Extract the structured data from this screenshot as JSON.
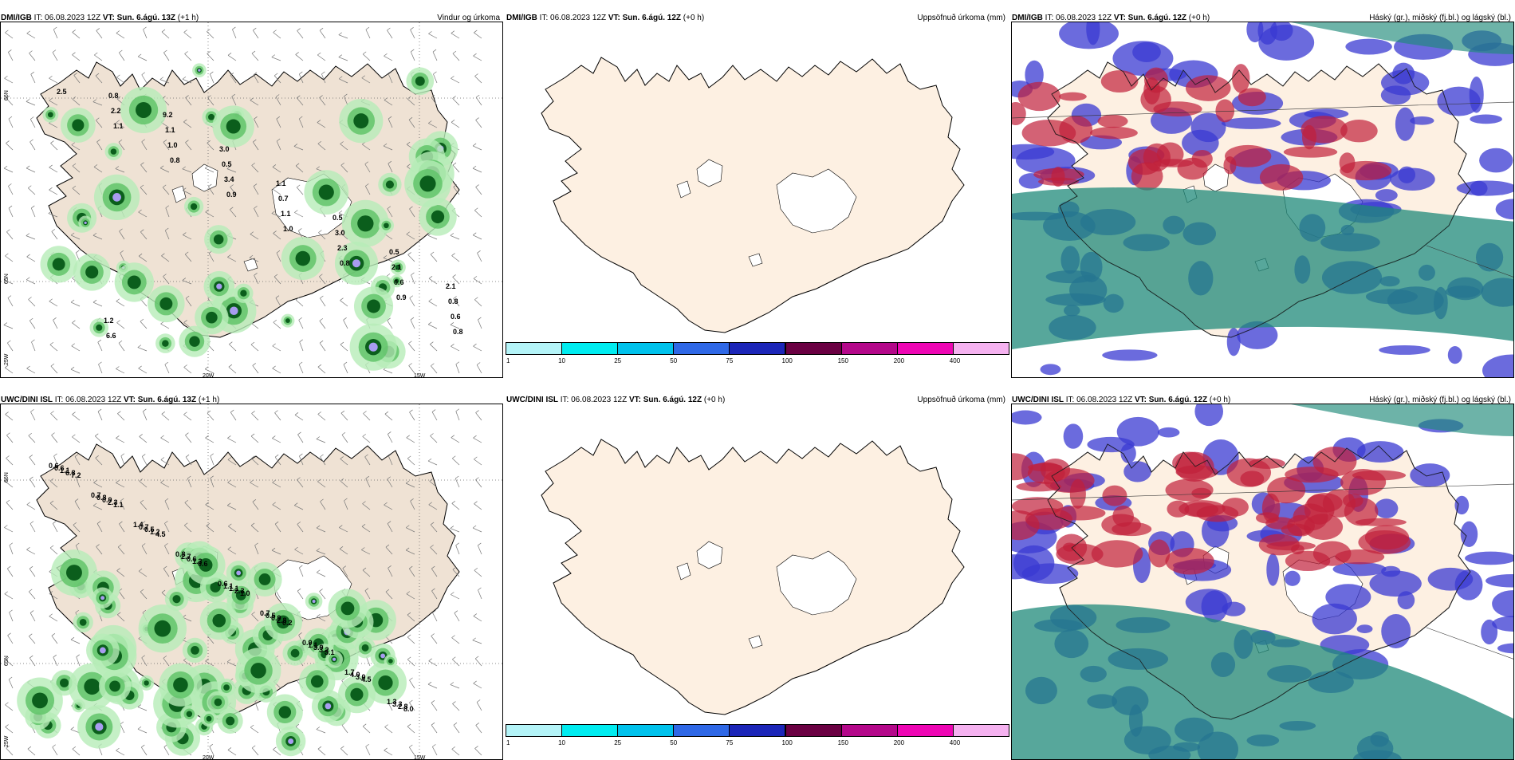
{
  "panels": [
    {
      "model": "DMI/IGB",
      "it": "IT: 06.08.2023 12Z",
      "vt_label": "VT:",
      "vt": "Sun. 6.ágú. 13Z",
      "lead": "(+1 h)",
      "title": "Vindur og úrkoma",
      "kind": "precip",
      "grid_labels": {
        "lat1": "66N",
        "lat2": "65N",
        "lon1": "20W",
        "lon2": "15W",
        "lat3": "25W"
      },
      "values": [
        "2.5",
        "1.1",
        "0.8",
        "0.9",
        "1.0",
        "0.8",
        "0.9",
        "0.8",
        "2.2",
        "1.0",
        "3.4",
        "1.1",
        "2.3",
        "0.6",
        "0.6",
        "0.8",
        "1.1",
        "0.5",
        "0.7",
        "3.0",
        "2.1",
        "0.8",
        "6.6",
        "9.2",
        "3.0",
        "1.1",
        "0.5",
        "0.5",
        "2.1",
        "1.2"
      ]
    },
    {
      "model": "DMI/IGB",
      "it": "IT: 06.08.2023 12Z",
      "vt_label": "VT:",
      "vt": "Sun. 6.ágú. 12Z",
      "lead": "(+0 h)",
      "title": "Uppsöfnuð úrkoma (mm)",
      "kind": "accum"
    },
    {
      "model": "DMI/IGB",
      "it": "IT: 06.08.2023 12Z",
      "vt_label": "VT:",
      "vt": "Sun. 6.ágú. 12Z",
      "lead": "(+0 h)",
      "title": "Háský (gr.), miðský (fj.bl.) og lágský (bl.)",
      "kind": "cloud"
    },
    {
      "model": "UWC/DINI ISL",
      "it": "IT: 06.08.2023 12Z",
      "vt_label": "VT:",
      "vt": "Sun. 6.ágú. 13Z",
      "lead": "(+1 h)",
      "title": "",
      "kind": "precip",
      "grid_labels": {
        "lat1": "66N",
        "lat2": "65N",
        "lon1": "20W",
        "lon2": "15W",
        "lat3": "25W"
      },
      "values": [
        "0.6",
        "0.7",
        "1.4",
        "0.8",
        "0.6",
        "0.7",
        "0.9",
        "1.7",
        "1.3",
        "0.6",
        "0.8",
        "0.7",
        "2.7",
        "1.1",
        "0.5",
        "1.1",
        "4.0",
        "3.3",
        "1.1",
        "0.9",
        "0.5",
        "0.6",
        "1.1",
        "0.9",
        "3.9",
        "3.0",
        "2.8",
        "6.8",
        "2.3",
        "1.2",
        "1.3",
        "2.3",
        "2.8",
        "3.2",
        "4.5",
        "8.0",
        "7.2",
        "1.1",
        "4.5",
        "0.6",
        "1.0",
        "0.2",
        "3.1"
      ]
    },
    {
      "model": "UWC/DINI ISL",
      "it": "IT: 06.08.2023 12Z",
      "vt_label": "VT:",
      "vt": "Sun. 6.ágú. 12Z",
      "lead": "(+0 h)",
      "title": "Uppsöfnuð úrkoma (mm)",
      "kind": "accum"
    },
    {
      "model": "UWC/DINI ISL",
      "it": "IT: 06.08.2023 12Z",
      "vt_label": "VT:",
      "vt": "Sun. 6.ágú. 12Z",
      "lead": "(+0 h)",
      "title": "Háský (gr.), miðský (fj.bl.) og lágský (bl.)",
      "kind": "cloud"
    }
  ],
  "colorbar": {
    "ticks": [
      "1",
      "10",
      "25",
      "50",
      "75",
      "100",
      "150",
      "200",
      "400"
    ],
    "colors": [
      "#b4f4f8",
      "#00ecf0",
      "#00c2ec",
      "#2f68e6",
      "#1c26b8",
      "#6a0042",
      "#b4088a",
      "#ee06b4",
      "#f5b2f0"
    ]
  },
  "palette": {
    "land": "#efe2d4",
    "land_blank": "#fdf0e2",
    "precip_light": "#b6ecb8",
    "precip_mid": "#62c46a",
    "precip_dark": "#0b5e1c",
    "precip_heavy": "#a89cf0",
    "cloud_high": "#1f8a7a",
    "cloud_mid": "#c0203a",
    "cloud_low": "#3a3ad2"
  }
}
